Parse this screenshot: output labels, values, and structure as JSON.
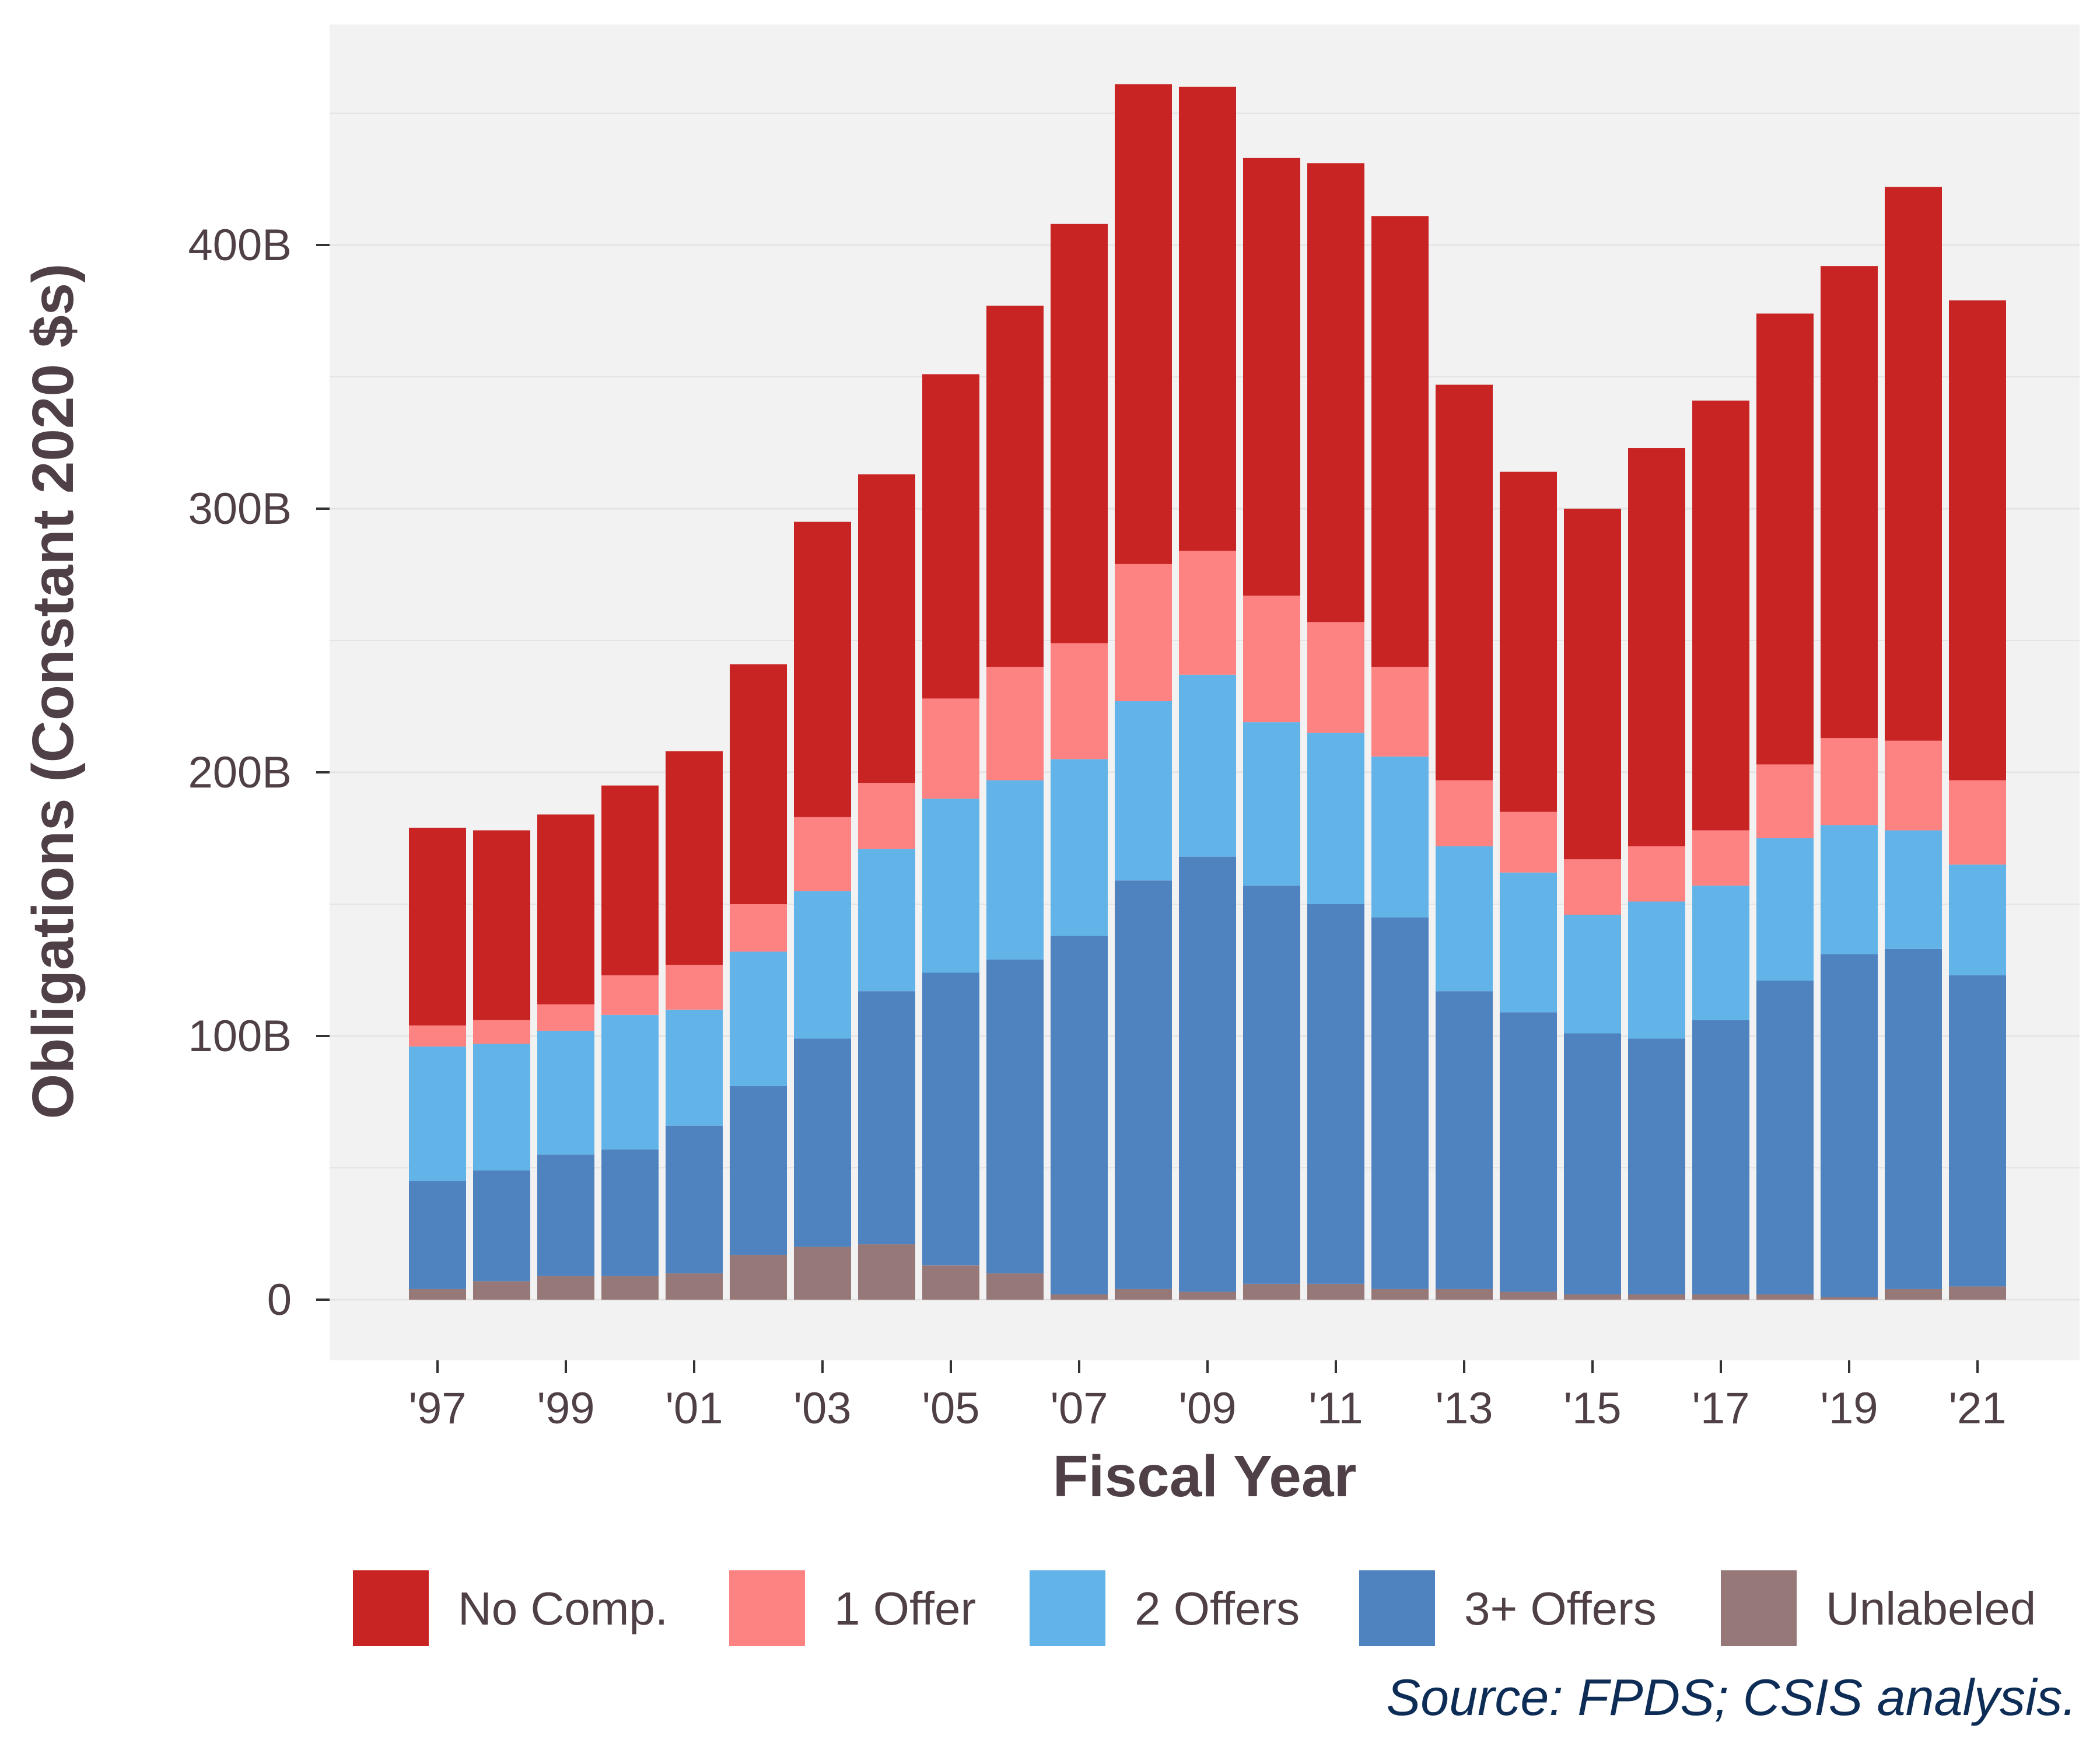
{
  "chart_data": {
    "type": "bar",
    "stacked": true,
    "xlabel": "Fiscal Year",
    "ylabel": "Obligations (Constant 2020 $s)",
    "source": "Source: FPDS; CSIS analysis.",
    "ylim": [
      0,
      470
    ],
    "y_ticks": [
      0,
      100,
      200,
      300,
      400
    ],
    "y_tick_labels": [
      "0",
      "100B",
      "200B",
      "300B",
      "400B"
    ],
    "grid": true,
    "legend_position": "bottom",
    "categories": [
      "1997",
      "1998",
      "1999",
      "2000",
      "2001",
      "2002",
      "2003",
      "2004",
      "2005",
      "2006",
      "2007",
      "2008",
      "2009",
      "2010",
      "2011",
      "2012",
      "2013",
      "2014",
      "2015",
      "2016",
      "2017",
      "2018",
      "2019",
      "2020",
      "2021"
    ],
    "x_tick_labels": [
      "'97",
      "'99",
      "'01",
      "'03",
      "'05",
      "'07",
      "'09",
      "'11",
      "'13",
      "'15",
      "'17",
      "'19",
      "'21"
    ],
    "series": [
      {
        "name": "Unlabeled",
        "color": "#967878",
        "values": [
          4,
          7,
          9,
          9,
          10,
          17,
          20,
          21,
          13,
          10,
          2,
          4,
          3,
          6,
          6,
          4,
          4,
          3,
          2,
          2,
          2,
          2,
          1,
          4,
          5
        ]
      },
      {
        "name": "3+ Offers",
        "color": "#4f83bf",
        "values": [
          41,
          42,
          46,
          48,
          56,
          64,
          79,
          96,
          111,
          119,
          136,
          155,
          165,
          151,
          144,
          141,
          113,
          106,
          99,
          97,
          104,
          119,
          130,
          129,
          118
        ]
      },
      {
        "name": "2 Offers",
        "color": "#62b3e8",
        "values": [
          51,
          48,
          47,
          51,
          44,
          51,
          56,
          54,
          66,
          68,
          67,
          68,
          69,
          62,
          65,
          61,
          55,
          53,
          45,
          52,
          51,
          54,
          49,
          45,
          42
        ]
      },
      {
        "name": "1 Offer",
        "color": "#fd8282",
        "values": [
          8,
          9,
          10,
          15,
          17,
          18,
          28,
          25,
          38,
          43,
          44,
          52,
          47,
          48,
          42,
          34,
          25,
          23,
          21,
          21,
          21,
          28,
          33,
          34,
          32
        ]
      },
      {
        "name": "No Comp.",
        "color": "#c92424",
        "values": [
          75,
          72,
          72,
          72,
          81,
          91,
          112,
          117,
          123,
          137,
          159,
          182,
          176,
          166,
          174,
          171,
          150,
          129,
          133,
          151,
          163,
          171,
          179,
          210,
          182
        ]
      }
    ],
    "legend_order": [
      "No Comp.",
      "1 Offer",
      "2 Offers",
      "3+ Offers",
      "Unlabeled"
    ],
    "panel_background": "#f2f2f2",
    "grid_color": "#e4e4e4"
  }
}
